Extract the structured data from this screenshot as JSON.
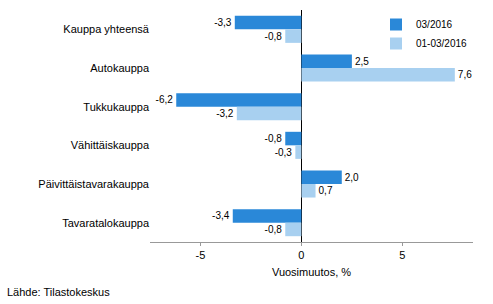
{
  "chart_data": {
    "type": "bar",
    "orientation": "horizontal",
    "categories": [
      "Kauppa yhteensä",
      "Autokauppa",
      "Tukkukauppa",
      "Vähittäiskauppa",
      "Päivittäistavarakauppa",
      "Tavaratalokauppa"
    ],
    "series": [
      {
        "name": "03/2016",
        "color": "#2a88d8",
        "values": [
          -3.3,
          2.5,
          -6.2,
          -0.8,
          2.0,
          -3.4
        ],
        "value_labels": [
          "-3,3",
          "2,5",
          "-6,2",
          "-0,8",
          "2,0",
          "-3,4"
        ]
      },
      {
        "name": "01-03/2016",
        "color": "#a8d0f0",
        "values": [
          -0.8,
          7.6,
          -3.2,
          -0.3,
          0.7,
          -0.8
        ],
        "value_labels": [
          "-0,8",
          "7,6",
          "-3,2",
          "-0,3",
          "0,7",
          "-0,8"
        ]
      }
    ],
    "x_label": "Vuosimuutos, %",
    "xlim": [
      -7.5,
      8.5
    ],
    "xticks": [
      -5,
      0,
      5
    ],
    "grid": false,
    "legend": "top right",
    "data_labels": true,
    "source": "Lähde: Tilastokeskus"
  }
}
